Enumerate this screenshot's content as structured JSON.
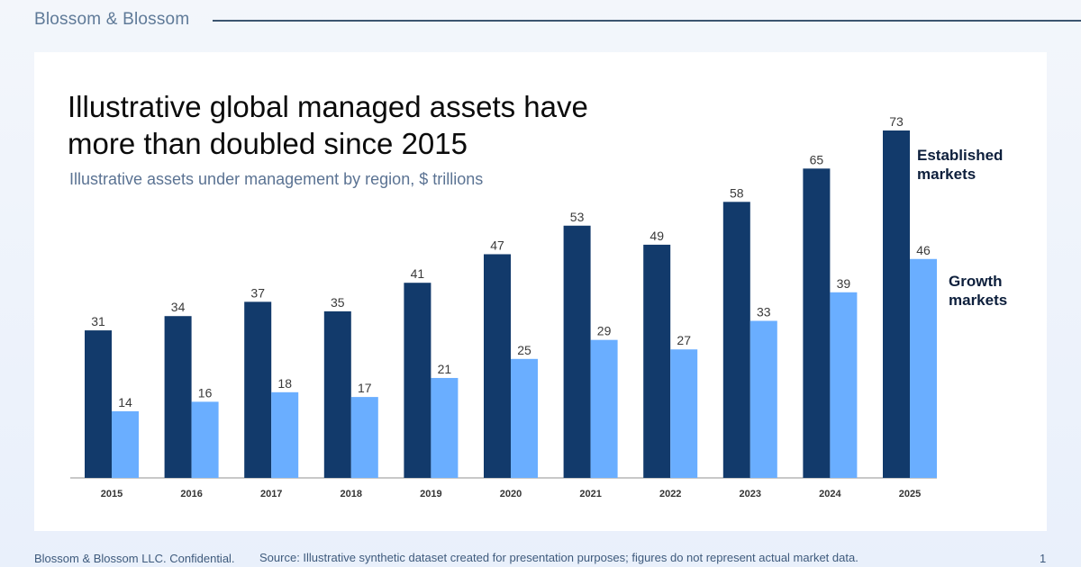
{
  "header": {
    "brand": "Blossom & Blossom"
  },
  "slide": {
    "title": "Illustrative global managed assets have more than doubled since 2015",
    "subtitle": "Illustrative assets under management by region, $ trillions"
  },
  "footer": {
    "confidential": "Blossom & Blossom LLC. Confidential.",
    "source": "Source: Illustrative synthetic dataset created for presentation purposes; figures do not represent actual market data.",
    "page_number": "1"
  },
  "colors": {
    "established": "#123a6b",
    "growth": "#6aaeff",
    "axis": "#c8c8c8"
  },
  "chart_data": {
    "type": "bar",
    "title": "",
    "xlabel": "",
    "ylabel": "",
    "ylim": [
      0,
      73
    ],
    "grid": false,
    "categories": [
      "2015",
      "2016",
      "2017",
      "2018",
      "2019",
      "2020",
      "2021",
      "2022",
      "2023",
      "2024",
      "2025"
    ],
    "series": [
      {
        "name": "Established markets",
        "values": [
          31,
          34,
          37,
          35,
          41,
          47,
          53,
          49,
          58,
          65,
          73
        ]
      },
      {
        "name": "Growth markets",
        "values": [
          14,
          16,
          18,
          17,
          21,
          25,
          29,
          27,
          33,
          39,
          46
        ]
      }
    ],
    "legend": "direct labels at right"
  }
}
